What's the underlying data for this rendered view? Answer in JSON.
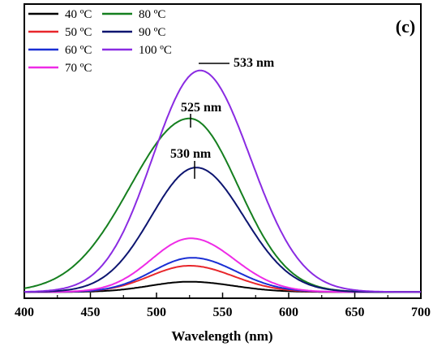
{
  "chart_data": {
    "type": "line",
    "panel_label": "(c)",
    "xlabel": "Wavelength (nm)",
    "ylabel": "",
    "xlim": [
      400,
      700
    ],
    "ylim": [
      0,
      100
    ],
    "x_ticks": [
      400,
      450,
      500,
      550,
      600,
      650,
      700
    ],
    "grid": false,
    "legend_position": "top-left",
    "series": [
      {
        "name": "40 ºC",
        "color": "#000000",
        "peak": 525,
        "peak_value": 4.5,
        "left_width": 30,
        "right_width": 33,
        "baseline": 0.6
      },
      {
        "name": "50 ºC",
        "color": "#e8262b",
        "peak": 525,
        "peak_value": 11.5,
        "left_width": 30,
        "right_width": 33,
        "baseline": 0.6
      },
      {
        "name": "60 ºC",
        "color": "#1a2fd4",
        "peak": 527,
        "peak_value": 15,
        "left_width": 30,
        "right_width": 33,
        "baseline": 0.6
      },
      {
        "name": "70 ºC",
        "color": "#ee2be6",
        "peak": 526,
        "peak_value": 23.5,
        "left_width": 30,
        "right_width": 33,
        "baseline": 0.6
      },
      {
        "name": "80 ºC",
        "color": "#157f1f",
        "peak": 525,
        "peak_value": 76,
        "left_width": 45,
        "right_width": 37,
        "baseline": 0.6
      },
      {
        "name": "90 ºC",
        "color": "#0d1570",
        "peak": 530,
        "peak_value": 54.5,
        "left_width": 34,
        "right_width": 36,
        "baseline": 0.6
      },
      {
        "name": "100 ºC",
        "color": "#8a2be2",
        "peak": 533,
        "peak_value": 97,
        "left_width": 36,
        "right_width": 38,
        "baseline": 0.6
      }
    ],
    "annotations": [
      {
        "text": "525 nm",
        "x": 525,
        "y": 76
      },
      {
        "text": "530 nm",
        "x": 530,
        "y": 54.5
      },
      {
        "text": "533 nm",
        "x": 533,
        "y": 97
      }
    ]
  }
}
